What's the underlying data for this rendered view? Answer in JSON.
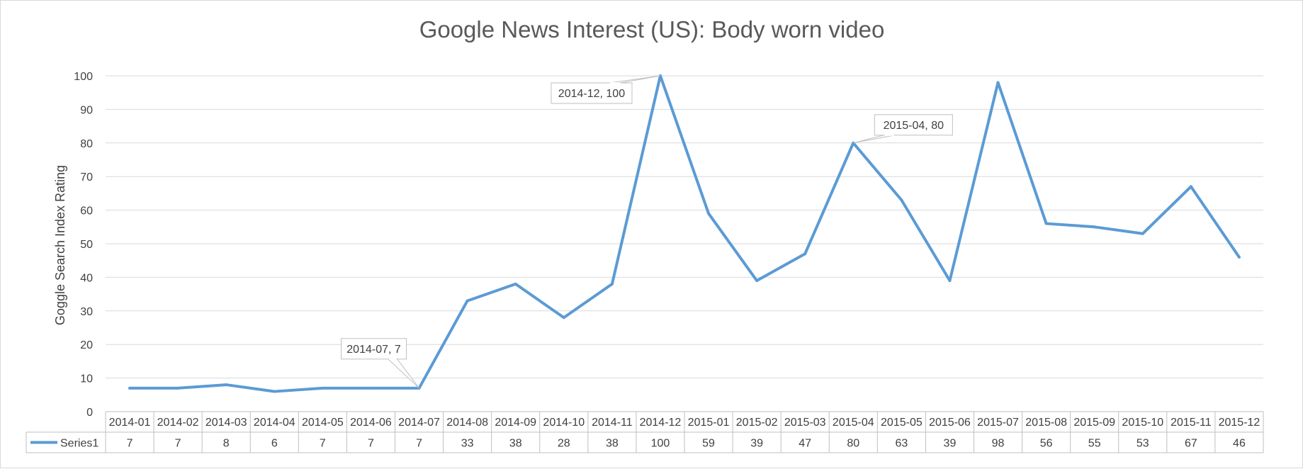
{
  "chart_data": {
    "type": "line",
    "title": "Google News Interest (US): Body worn video",
    "ylabel": "Goggle Search Index Rating",
    "xlabel": "",
    "ylim": [
      0,
      100
    ],
    "yticks": [
      0,
      10,
      20,
      30,
      40,
      50,
      60,
      70,
      80,
      90,
      100
    ],
    "grid": true,
    "legend": "data-table",
    "categories": [
      "2014-01",
      "2014-02",
      "2014-03",
      "2014-04",
      "2014-05",
      "2014-06",
      "2014-07",
      "2014-08",
      "2014-09",
      "2014-10",
      "2014-11",
      "2014-12",
      "2015-01",
      "2015-02",
      "2015-03",
      "2015-04",
      "2015-05",
      "2015-06",
      "2015-07",
      "2015-08",
      "2015-09",
      "2015-10",
      "2015-11",
      "2015-12"
    ],
    "series": [
      {
        "name": "Series1",
        "color": "#5b9bd5",
        "values": [
          7,
          7,
          8,
          6,
          7,
          7,
          7,
          33,
          38,
          28,
          38,
          100,
          59,
          39,
          47,
          80,
          63,
          39,
          98,
          56,
          55,
          53,
          67,
          46
        ]
      }
    ],
    "annotations": [
      {
        "text": "2014-07, 7",
        "category": "2014-07",
        "value": 7
      },
      {
        "text": "2014-12, 100",
        "category": "2014-12",
        "value": 100
      },
      {
        "text": "2015-04, 80",
        "category": "2015-04",
        "value": 80
      }
    ]
  }
}
